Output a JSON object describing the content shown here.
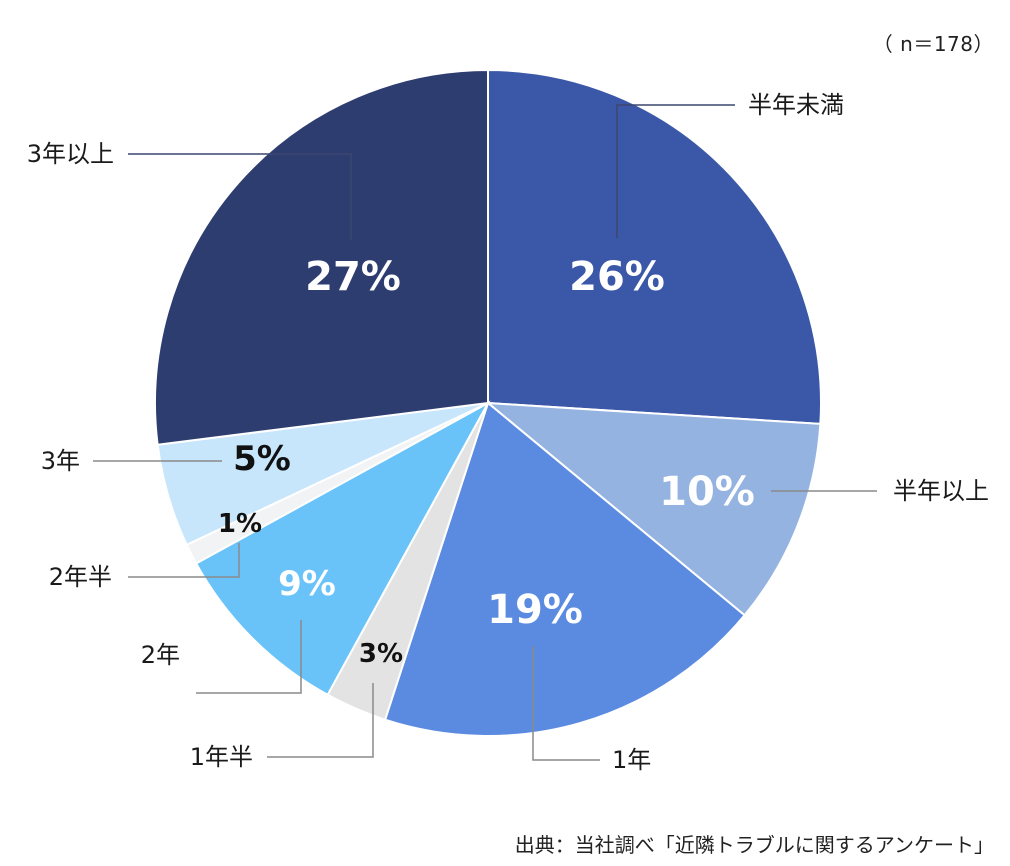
{
  "sample_size": "（ n＝178）",
  "source": "出典：当社調べ「近隣トラブルに関するアンケート」",
  "chart_data": {
    "type": "pie",
    "start": "12 o'clock",
    "direction": "clockwise",
    "slices": [
      {
        "label": "半年未満",
        "value": 26,
        "value_label": "26%",
        "color": "#3b57a8"
      },
      {
        "label": "半年以上",
        "value": 10,
        "value_label": "10%",
        "color": "#95b3e0"
      },
      {
        "label": "1年",
        "value": 19,
        "value_label": "19%",
        "color": "#5a8be0"
      },
      {
        "label": "1年半",
        "value": 3,
        "value_label": "3%",
        "color": "#e3e3e3"
      },
      {
        "label": "2年",
        "value": 9,
        "value_label": "9%",
        "color": "#6ac3f8"
      },
      {
        "label": "2年半",
        "value": 1,
        "value_label": "1%",
        "color": "#f2f3f5"
      },
      {
        "label": "3年",
        "value": 5,
        "value_label": "5%",
        "color": "#c8e6fb"
      },
      {
        "label": "3年以上",
        "value": 27,
        "value_label": "27%",
        "color": "#2e3d70"
      }
    ]
  }
}
